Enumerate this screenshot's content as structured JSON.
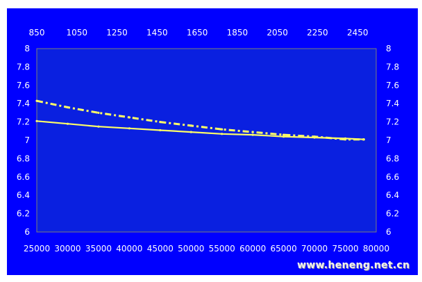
{
  "chart_data": {
    "type": "line",
    "title": "",
    "xlabel": "",
    "ylabel": "",
    "x_bottom": {
      "min": 25000,
      "max": 80000,
      "ticks": [
        25000,
        30000,
        35000,
        40000,
        45000,
        50000,
        55000,
        60000,
        65000,
        70000,
        75000,
        80000
      ]
    },
    "x_top": {
      "min": 850,
      "max": 2650,
      "ticks": [
        850,
        1050,
        1250,
        1450,
        1650,
        1850,
        2050,
        2250,
        2450
      ]
    },
    "y": {
      "min": 6,
      "max": 8,
      "ticks": [
        6,
        6.2,
        6.4,
        6.6,
        6.8,
        7,
        7.2,
        7.4,
        7.6,
        7.8,
        8
      ]
    },
    "grid": false,
    "series": [
      {
        "line_style": "dashed",
        "x_axis": "bottom",
        "color": "#ffff66",
        "x": [
          25000,
          30000,
          35000,
          40000,
          45000,
          50000,
          55000,
          60000,
          65000,
          70000,
          75000,
          78000
        ],
        "values": [
          7.43,
          7.36,
          7.3,
          7.25,
          7.2,
          7.16,
          7.12,
          7.09,
          7.06,
          7.04,
          7.01,
          7.01
        ]
      },
      {
        "line_style": "solid",
        "x_axis": "bottom",
        "color": "#ffff66",
        "x": [
          25000,
          30000,
          35000,
          40000,
          45000,
          50000,
          55000,
          60000,
          65000,
          70000,
          75000,
          78000
        ],
        "values": [
          7.21,
          7.18,
          7.15,
          7.13,
          7.11,
          7.09,
          7.07,
          7.06,
          7.04,
          7.03,
          7.02,
          7.01
        ]
      }
    ]
  },
  "colors": {
    "background": "#0000ff",
    "plot_area": "#0a20e0",
    "plot_border": "#7c7c7c",
    "axis_text": "#ffffff"
  },
  "watermark": "www.heneng.net.cn"
}
